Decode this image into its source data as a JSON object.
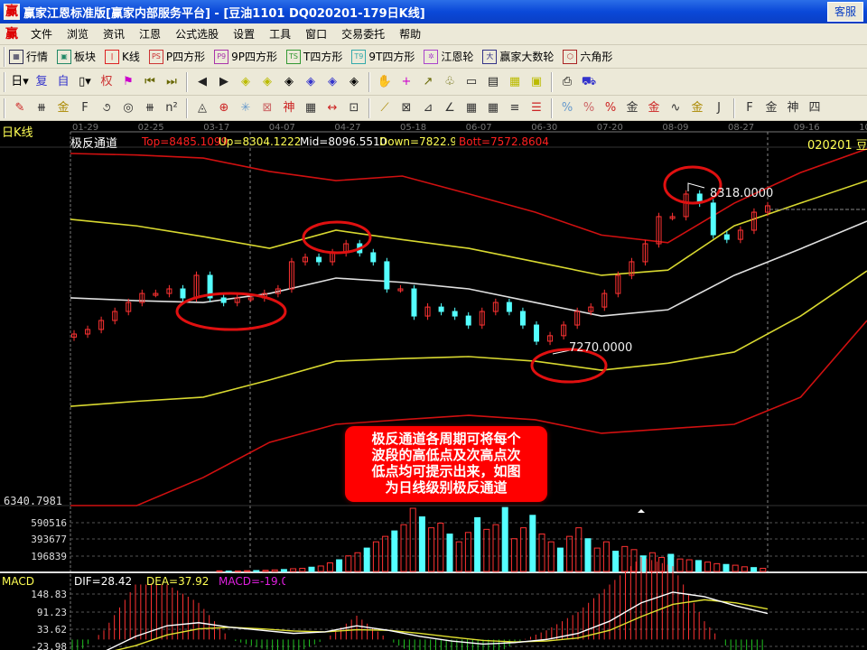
{
  "window": {
    "title": "赢家江恩标准版[赢家内部服务平台] - [豆油1101   DQ020201-179日K线]",
    "service_button": "客服",
    "logo": "赢"
  },
  "menu": [
    "文件",
    "浏览",
    "资讯",
    "江恩",
    "公式选股",
    "设置",
    "工具",
    "窗口",
    "交易委托",
    "帮助"
  ],
  "toolbar1": [
    {
      "icon": "quotes-grid-icon",
      "glyph": "▦",
      "label": "行情"
    },
    {
      "icon": "sector-blocks-icon",
      "glyph": "▣",
      "label": "板块"
    },
    {
      "icon": "candlestick-icon",
      "glyph": "ǀ",
      "label": "K线"
    },
    {
      "icon": "ps-icon",
      "glyph": "PS",
      "label": "P四方形"
    },
    {
      "icon": "p9-icon",
      "glyph": "P9",
      "label": "9P四方形"
    },
    {
      "icon": "ts-icon",
      "glyph": "TS",
      "label": "T四方形"
    },
    {
      "icon": "t9-icon",
      "glyph": "T9",
      "label": "9T四方形"
    },
    {
      "icon": "gann-wheel-icon",
      "glyph": "✲",
      "label": "江恩轮"
    },
    {
      "icon": "big-number-wheel-icon",
      "glyph": "大",
      "label": "赢家大数轮"
    },
    {
      "icon": "hexagon-icon",
      "glyph": "⬡",
      "label": "六角形"
    }
  ],
  "toolbar2": [
    {
      "icon": "period-day-icon",
      "glyph": "日▾"
    },
    {
      "icon": "fuquan-icon",
      "glyph": "复"
    },
    {
      "icon": "self-select-icon",
      "glyph": "自"
    },
    {
      "icon": "candle-type-icon",
      "glyph": "▯▾"
    },
    {
      "icon": "rights-icon",
      "glyph": "权"
    },
    {
      "icon": "flag-icon",
      "glyph": "⚑"
    },
    {
      "icon": "first-icon",
      "glyph": "⏮"
    },
    {
      "icon": "last-icon",
      "glyph": "⏭"
    },
    {
      "icon": "left-arrow-icon",
      "glyph": "◀"
    },
    {
      "icon": "right-arrow-icon",
      "glyph": "▶"
    },
    {
      "icon": "move-left-icon",
      "glyph": "◈"
    },
    {
      "icon": "move-right-icon",
      "glyph": "◈"
    },
    {
      "icon": "expand-icon",
      "glyph": "◈"
    },
    {
      "icon": "shrink-icon",
      "glyph": "◈"
    },
    {
      "icon": "zoom-in-icon",
      "glyph": "◈"
    },
    {
      "icon": "zoom-vertical-icon",
      "glyph": "◈"
    },
    {
      "icon": "hand-icon",
      "glyph": "✋"
    },
    {
      "icon": "crosshair-icon",
      "glyph": "+"
    },
    {
      "icon": "trend-icon",
      "glyph": "↗"
    },
    {
      "icon": "gift-icon",
      "glyph": "♧"
    },
    {
      "icon": "ruler-icon",
      "glyph": "▭"
    },
    {
      "icon": "calendar-icon",
      "glyph": "▤"
    },
    {
      "icon": "calculator-icon",
      "glyph": "▦"
    },
    {
      "icon": "save-icon",
      "glyph": "▣"
    },
    {
      "icon": "print-icon",
      "glyph": "⎙"
    },
    {
      "icon": "truck-icon",
      "glyph": "⛟"
    }
  ],
  "toolbar3": [
    {
      "icon": "pen-icon",
      "glyph": "✎"
    },
    {
      "icon": "parallel-lines-icon",
      "glyph": "⧻"
    },
    {
      "icon": "gold-lines-icon",
      "glyph": "金"
    },
    {
      "icon": "fib-icon",
      "glyph": "F"
    },
    {
      "icon": "spiral-icon",
      "glyph": "૭"
    },
    {
      "icon": "circle-lines-icon",
      "glyph": "◎"
    },
    {
      "icon": "grid-lines-icon",
      "glyph": "⧻"
    },
    {
      "icon": "n2-icon",
      "glyph": "n²"
    },
    {
      "icon": "triangle-icon",
      "glyph": "◬"
    },
    {
      "icon": "target-icon",
      "glyph": "⊕"
    },
    {
      "icon": "star-icon",
      "glyph": "✳"
    },
    {
      "icon": "square-star-icon",
      "glyph": "⊠"
    },
    {
      "icon": "shen-icon",
      "glyph": "神"
    },
    {
      "icon": "calendar-grid-icon",
      "glyph": "▦"
    },
    {
      "icon": "width-icon",
      "glyph": "↔"
    },
    {
      "icon": "box-icon",
      "glyph": "⊡"
    },
    {
      "icon": "fan-icon",
      "glyph": "⟋"
    },
    {
      "icon": "gann-box-icon",
      "glyph": "⊠"
    },
    {
      "icon": "gann-fan-icon",
      "glyph": "⊿"
    },
    {
      "icon": "angle-icon",
      "glyph": "∠"
    },
    {
      "icon": "gann-grid-icon",
      "glyph": "▦"
    },
    {
      "icon": "gann-square-icon",
      "glyph": "▦"
    },
    {
      "icon": "channel-icon",
      "glyph": "≡"
    },
    {
      "icon": "list-icon",
      "glyph": "☰"
    },
    {
      "icon": "percent-line-icon",
      "glyph": "%"
    },
    {
      "icon": "percent-icon",
      "glyph": "%"
    },
    {
      "icon": "percent-level-icon",
      "glyph": "%"
    },
    {
      "icon": "gold-circle-icon",
      "glyph": "金"
    },
    {
      "icon": "gold-level-icon",
      "glyph": "金"
    },
    {
      "icon": "wave-icon",
      "glyph": "∿"
    },
    {
      "icon": "gold-bar-icon",
      "glyph": "金"
    },
    {
      "icon": "j-angle-icon",
      "glyph": "J"
    },
    {
      "icon": "f-angle-icon",
      "glyph": "F"
    },
    {
      "icon": "gold-angle-icon",
      "glyph": "金"
    },
    {
      "icon": "shen-angle-icon",
      "glyph": "神"
    },
    {
      "icon": "four-angle-icon",
      "glyph": "四"
    }
  ],
  "chart": {
    "period_label": "日K线",
    "indicator_name": "极反通道",
    "readouts": {
      "top": "Top=8485.1099",
      "up": "Up=8304.1222",
      "mid": "Mid=8096.5510",
      "down": "Down=7822.985",
      "bott": "Bott=7572.8604"
    },
    "symbol": "020201  豆",
    "dates": [
      "01-29",
      "02-25",
      "03-17",
      "04-07",
      "04-27",
      "05-18",
      "06-07",
      "06-30",
      "07-20",
      "08-09",
      "08-27",
      "09-16",
      "10-0"
    ],
    "price_axis_min": "6340.7981",
    "high_label": "8318.0000",
    "low_label": "7270.0000",
    "note": [
      "极反通道各周期可将每个",
      "波段的高低点及次高点次",
      "低点均可提示出来，如图",
      "为日线级别极反通道"
    ],
    "colors": {
      "top": "#d01010",
      "up": "#d8d830",
      "mid": "#e0e0e0",
      "down": "#d8d830",
      "bott": "#d01010",
      "up_candle": "#ff3232",
      "down_candle": "#54ffff"
    },
    "closes": [
      7341,
      7371,
      7430,
      7489,
      7548,
      7607,
      7607,
      7637,
      7578,
      7726,
      7578,
      7548,
      7578,
      7578,
      7607,
      7637,
      7815,
      7844,
      7815,
      7874,
      7933,
      7874,
      7815,
      7637,
      7637,
      7459,
      7518,
      7489,
      7459,
      7400,
      7489,
      7548,
      7489,
      7400,
      7294,
      7330,
      7400,
      7489,
      7518,
      7607,
      7726,
      7815,
      7933,
      8111,
      8111,
      8259,
      8200,
      7992,
      7962,
      8022,
      8140,
      8182
    ],
    "bands": {
      "top": [
        8525,
        8515,
        8495,
        8407,
        8347,
        8377,
        8260,
        8140,
        7990,
        7940,
        8199,
        8400,
        8555
      ],
      "up": [
        8093,
        8050,
        7980,
        7903,
        8022,
        7960,
        7903,
        7815,
        7726,
        7760,
        8051,
        8200,
        8347
      ],
      "mid": [
        7578,
        7560,
        7548,
        7607,
        7708,
        7680,
        7637,
        7548,
        7459,
        7500,
        7726,
        7900,
        8081
      ],
      "down": [
        6867,
        6900,
        6927,
        7040,
        7163,
        7180,
        7193,
        7163,
        7104,
        7150,
        7223,
        7459,
        7755
      ],
      "bott": [
        6216,
        6216,
        6400,
        6631,
        6749,
        6780,
        6808,
        6779,
        6690,
        6720,
        6749,
        6927,
        7430
      ]
    },
    "volume": {
      "ticks": [
        "590516",
        "393677",
        "196839"
      ],
      "values": [
        8,
        5,
        6,
        10,
        12,
        15,
        20,
        25,
        35,
        40,
        55,
        70,
        110,
        150,
        200,
        240,
        300,
        380,
        450,
        520,
        600,
        810,
        700,
        560,
        620,
        480,
        380,
        500,
        690,
        540,
        600,
        820,
        420,
        560,
        720,
        480,
        380,
        300,
        450,
        560,
        420,
        300,
        380,
        260,
        320,
        280,
        200,
        240,
        180,
        220,
        160,
        150,
        140,
        120,
        100,
        90,
        80,
        60,
        50,
        40
      ]
    },
    "macd": {
      "label": "MACD",
      "dif": "DIF=28.42",
      "dea": "DEA=37.92",
      "macd": "MACD=-19.00",
      "ticks": [
        "148.83",
        "91.23",
        "33.62",
        "-23.98"
      ],
      "dif_values": [
        -60,
        -40,
        10,
        45,
        55,
        40,
        30,
        20,
        25,
        45,
        30,
        10,
        -5,
        -15,
        -10,
        0,
        20,
        60,
        120,
        155,
        140,
        110,
        85
      ],
      "dea_values": [
        -50,
        -45,
        -20,
        15,
        35,
        40,
        35,
        28,
        25,
        32,
        30,
        20,
        8,
        -3,
        -8,
        -5,
        5,
        30,
        75,
        115,
        130,
        120,
        100
      ]
    }
  }
}
